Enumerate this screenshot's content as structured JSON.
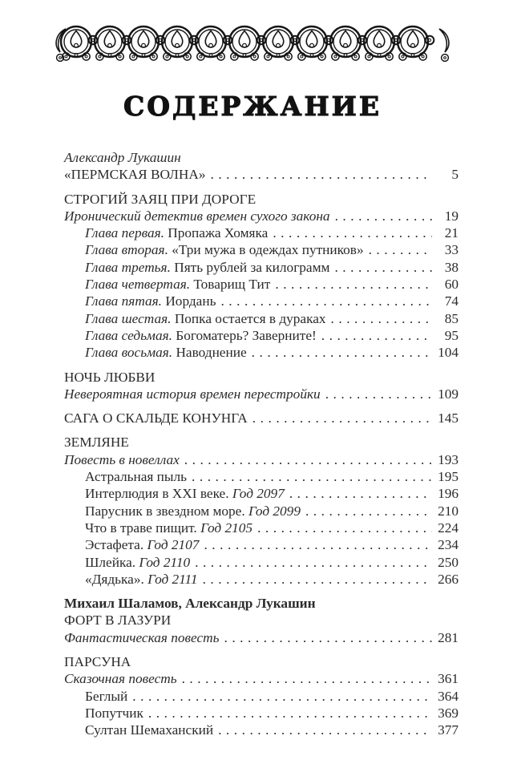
{
  "colors": {
    "background": "#ffffff",
    "text": "#2b2b2b",
    "title": "#121212",
    "ornament": "#161616"
  },
  "decor": {
    "ornament_icon": "arch-scroll-border-icon"
  },
  "toc": {
    "title": "СОДЕРЖАНИЕ",
    "groups": [
      {
        "rows": [
          {
            "parts": [
              {
                "t": "Александр Лукашин",
                "s": "i"
              }
            ]
          },
          {
            "parts": [
              {
                "t": "«ПЕРМСКАЯ ВОЛНА»"
              }
            ],
            "page": "5"
          }
        ]
      },
      {
        "rows": [
          {
            "parts": [
              {
                "t": "СТРОГИЙ ЗАЯЦ ПРИ ДОРОГЕ"
              }
            ]
          },
          {
            "parts": [
              {
                "t": "Иронический детектив времен сухого закона",
                "s": "i"
              }
            ],
            "page": "19"
          },
          {
            "indent": true,
            "parts": [
              {
                "t": "Глава первая. ",
                "s": "i"
              },
              {
                "t": "Пропажа Хомяка"
              }
            ],
            "page": "21"
          },
          {
            "indent": true,
            "parts": [
              {
                "t": "Глава вторая. ",
                "s": "i"
              },
              {
                "t": "«Три мужа в одеждах путников»"
              }
            ],
            "page": "33"
          },
          {
            "indent": true,
            "parts": [
              {
                "t": "Глава третья. ",
                "s": "i"
              },
              {
                "t": "Пять рублей за килограмм"
              }
            ],
            "page": "38"
          },
          {
            "indent": true,
            "parts": [
              {
                "t": "Глава четвертая. ",
                "s": "i"
              },
              {
                "t": "Товарищ Тит"
              }
            ],
            "page": "60"
          },
          {
            "indent": true,
            "parts": [
              {
                "t": "Глава пятая. ",
                "s": "i"
              },
              {
                "t": "Иордань"
              }
            ],
            "page": "74"
          },
          {
            "indent": true,
            "parts": [
              {
                "t": "Глава шестая. ",
                "s": "i"
              },
              {
                "t": "Попка остается в дураках"
              }
            ],
            "page": "85"
          },
          {
            "indent": true,
            "parts": [
              {
                "t": "Глава седьмая. ",
                "s": "i"
              },
              {
                "t": "Богоматерь? Заверните!"
              }
            ],
            "page": "95"
          },
          {
            "indent": true,
            "parts": [
              {
                "t": "Глава восьмая. ",
                "s": "i"
              },
              {
                "t": "Наводнение"
              }
            ],
            "page": "104"
          }
        ]
      },
      {
        "rows": [
          {
            "parts": [
              {
                "t": "НОЧЬ ЛЮБВИ"
              }
            ]
          },
          {
            "parts": [
              {
                "t": "Невероятная история времен перестройки",
                "s": "i"
              }
            ],
            "page": "109"
          }
        ]
      },
      {
        "rows": [
          {
            "parts": [
              {
                "t": "САГА О СКАЛЬДЕ КОНУНГА"
              }
            ],
            "page": "145"
          }
        ]
      },
      {
        "rows": [
          {
            "parts": [
              {
                "t": "ЗЕМЛЯНЕ"
              }
            ]
          },
          {
            "parts": [
              {
                "t": "Повесть в новеллах",
                "s": "i"
              }
            ],
            "page": "193"
          },
          {
            "indent": true,
            "parts": [
              {
                "t": "Астральная пыль"
              }
            ],
            "page": "195"
          },
          {
            "indent": true,
            "parts": [
              {
                "t": "Интерлюдия в XXI веке. "
              },
              {
                "t": "Год 2097",
                "s": "i"
              }
            ],
            "page": "196"
          },
          {
            "indent": true,
            "parts": [
              {
                "t": "Парусник в звездном море. "
              },
              {
                "t": "Год 2099",
                "s": "i"
              }
            ],
            "page": "210"
          },
          {
            "indent": true,
            "parts": [
              {
                "t": "Что в траве пищит. "
              },
              {
                "t": "Год 2105",
                "s": "i"
              }
            ],
            "page": "224"
          },
          {
            "indent": true,
            "parts": [
              {
                "t": "Эстафета. "
              },
              {
                "t": "Год 2107",
                "s": "i"
              }
            ],
            "page": "234"
          },
          {
            "indent": true,
            "parts": [
              {
                "t": "Шлейка. "
              },
              {
                "t": "Год 2110",
                "s": "i"
              }
            ],
            "page": "250"
          },
          {
            "indent": true,
            "parts": [
              {
                "t": "«Дядька». "
              },
              {
                "t": "Год 2111",
                "s": "i"
              }
            ],
            "page": "266"
          }
        ]
      },
      {
        "rows": [
          {
            "parts": [
              {
                "t": "Михаил Шаламов, Александр Лукашин",
                "s": "b"
              }
            ]
          },
          {
            "parts": [
              {
                "t": "ФОРТ В ЛАЗУРИ"
              }
            ]
          },
          {
            "parts": [
              {
                "t": "Фантастическая повесть",
                "s": "i"
              }
            ],
            "page": "281"
          }
        ]
      },
      {
        "rows": [
          {
            "parts": [
              {
                "t": "ПАРСУНА"
              }
            ]
          },
          {
            "parts": [
              {
                "t": "Сказочная повесть",
                "s": "i"
              }
            ],
            "page": "361"
          },
          {
            "indent": true,
            "parts": [
              {
                "t": "Беглый"
              }
            ],
            "page": "364"
          },
          {
            "indent": true,
            "parts": [
              {
                "t": "Попутчик"
              }
            ],
            "page": "369"
          },
          {
            "indent": true,
            "parts": [
              {
                "t": "Султан Шемаханский"
              }
            ],
            "page": "377"
          }
        ]
      }
    ]
  }
}
